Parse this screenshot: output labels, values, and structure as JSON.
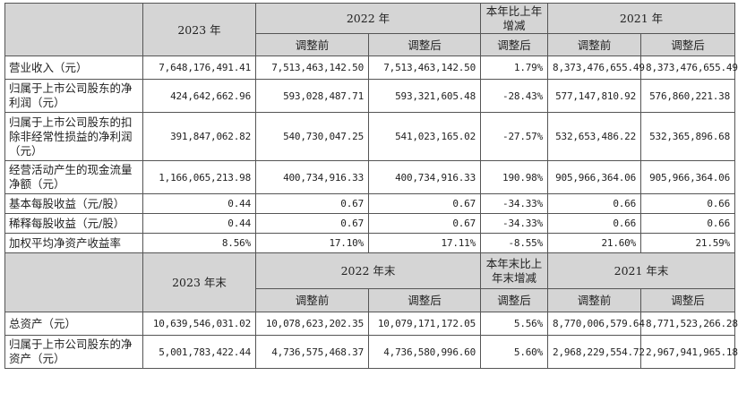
{
  "header_top": {
    "col_2023": "2023 年",
    "col_2022": "2022 年",
    "col_change": "本年比上年增减",
    "col_2021": "2021 年",
    "before": "调整前",
    "after": "调整后",
    "after_change": "调整后"
  },
  "rows_top": [
    {
      "label": "营业收入（元）",
      "v2023": "7,648,176,491.41",
      "v2022b": "7,513,463,142.50",
      "v2022a": "7,513,463,142.50",
      "chg": "1.79%",
      "v2021b": "8,373,476,655.49",
      "v2021a": "8,373,476,655.49"
    },
    {
      "label": "归属于上市公司股东的净利润（元）",
      "v2023": "424,642,662.96",
      "v2022b": "593,028,487.71",
      "v2022a": "593,321,605.48",
      "chg": "-28.43%",
      "v2021b": "577,147,810.92",
      "v2021a": "576,860,221.38"
    },
    {
      "label": "归属于上市公司股东的扣除非经常性损益的净利润（元）",
      "v2023": "391,847,062.82",
      "v2022b": "540,730,047.25",
      "v2022a": "541,023,165.02",
      "chg": "-27.57%",
      "v2021b": "532,653,486.22",
      "v2021a": "532,365,896.68"
    },
    {
      "label": "经营活动产生的现金流量净额（元）",
      "v2023": "1,166,065,213.98",
      "v2022b": "400,734,916.33",
      "v2022a": "400,734,916.33",
      "chg": "190.98%",
      "v2021b": "905,966,364.06",
      "v2021a": "905,966,364.06"
    },
    {
      "label": "基本每股收益（元/股）",
      "v2023": "0.44",
      "v2022b": "0.67",
      "v2022a": "0.67",
      "chg": "-34.33%",
      "v2021b": "0.66",
      "v2021a": "0.66"
    },
    {
      "label": "稀释每股收益（元/股）",
      "v2023": "0.44",
      "v2022b": "0.67",
      "v2022a": "0.67",
      "chg": "-34.33%",
      "v2021b": "0.66",
      "v2021a": "0.66"
    },
    {
      "label": "加权平均净资产收益率",
      "v2023": "8.56%",
      "v2022b": "17.10%",
      "v2022a": "17.11%",
      "chg": "-8.55%",
      "v2021b": "21.60%",
      "v2021a": "21.59%"
    }
  ],
  "header_bottom": {
    "col_2023": "2023 年末",
    "col_2022": "2022 年末",
    "col_change": "本年末比上年末增减",
    "col_2021": "2021 年末",
    "before": "调整前",
    "after": "调整后",
    "after_change": "调整后"
  },
  "rows_bottom": [
    {
      "label": "总资产（元）",
      "v2023": "10,639,546,031.02",
      "v2022b": "10,078,623,202.35",
      "v2022a": "10,079,171,172.05",
      "chg": "5.56%",
      "v2021b": "8,770,006,579.64",
      "v2021a": "8,771,523,266.28"
    },
    {
      "label": "归属于上市公司股东的净资产（元）",
      "v2023": "5,001,783,422.44",
      "v2022b": "4,736,575,468.37",
      "v2022a": "4,736,580,996.60",
      "chg": "5.60%",
      "v2021b": "2,968,229,554.72",
      "v2021a": "2,967,941,965.18"
    }
  ]
}
